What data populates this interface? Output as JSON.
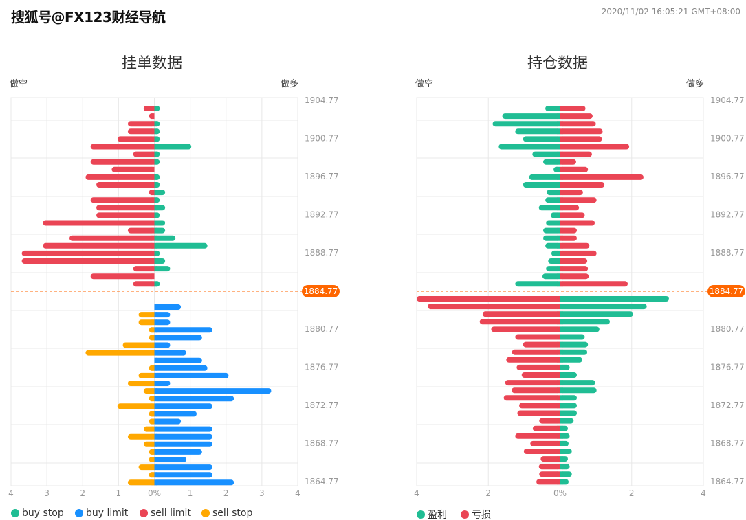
{
  "header": {
    "watermark": "搜狐号@FX123财经导航",
    "timestamp": "2020/11/02 16:05:21 GMT+08:00"
  },
  "colors": {
    "green": "#20bd94",
    "red": "#ea4555",
    "blue": "#1890ff",
    "orange": "#ffa800",
    "price_line": "#ff6600",
    "grid": "#e8e8e8"
  },
  "chart_data": [
    {
      "type": "bar",
      "orientation": "horizontal-diverging",
      "title": "挂单数据",
      "left_label": "做空",
      "right_label": "做多",
      "x_ticks": [
        "4",
        "3",
        "2",
        "1",
        "0%",
        "1",
        "2",
        "3",
        "4"
      ],
      "xlim": [
        -4,
        4
      ],
      "grid": true,
      "price_ticks": [
        "1904.77",
        "1900.77",
        "1896.77",
        "1892.77",
        "1888.77",
        "1884.77",
        "1880.77",
        "1876.77",
        "1872.77",
        "1868.77",
        "1864.77"
      ],
      "current_price": "1884.77",
      "legend": [
        {
          "name": "buy stop",
          "color": "#20bd94"
        },
        {
          "name": "buy limit",
          "color": "#1890ff"
        },
        {
          "name": "sell limit",
          "color": "#ea4555"
        },
        {
          "name": "sell stop",
          "color": "#ffa800"
        }
      ],
      "above_price": {
        "sell limit": [
          0.3,
          0.15,
          0.74,
          0.74,
          1.03,
          1.78,
          0.59,
          1.78,
          1.19,
          1.92,
          1.62,
          0.15,
          1.78,
          1.62,
          1.62,
          3.11,
          0.74,
          2.37,
          3.11,
          3.7,
          3.7,
          0.59,
          1.78,
          0.59
        ],
        "buy stop": [
          0.15,
          0,
          0.15,
          0.15,
          0.15,
          1.03,
          0.15,
          0.15,
          0,
          0.15,
          0.15,
          0.3,
          0.15,
          0.3,
          0.15,
          0.3,
          0.3,
          0.59,
          1.48,
          0.15,
          0.3,
          0.44,
          0,
          0.15
        ]
      },
      "below_price": {
        "sell stop": [
          0,
          0.44,
          0.44,
          0.15,
          0.15,
          0.88,
          1.92,
          0,
          0.15,
          0.44,
          0.74,
          0.3,
          0.15,
          1.03,
          0.15,
          0.15,
          0.3,
          0.74,
          0.3,
          0.15,
          0.15,
          0.44,
          0.15,
          0.74
        ],
        "buy limit": [
          0.74,
          0.44,
          0.44,
          1.62,
          1.33,
          0.44,
          0.89,
          1.33,
          1.48,
          2.07,
          0.44,
          3.26,
          2.22,
          1.62,
          1.18,
          0.74,
          1.62,
          1.62,
          1.62,
          1.33,
          0.89,
          1.62,
          1.62,
          2.22
        ]
      }
    },
    {
      "type": "bar",
      "orientation": "horizontal-diverging",
      "title": "持仓数据",
      "left_label": "做空",
      "right_label": "做多",
      "x_ticks": [
        "4",
        "2",
        "0%",
        "2",
        "4"
      ],
      "xlim": [
        -4,
        4
      ],
      "grid": true,
      "price_ticks": [
        "1904.77",
        "1900.77",
        "1896.77",
        "1892.77",
        "1888.77",
        "1884.77",
        "1880.77",
        "1876.77",
        "1872.77",
        "1868.77",
        "1864.77"
      ],
      "current_price": "1884.77",
      "legend": [
        {
          "name": "盈利",
          "color": "#20bd94"
        },
        {
          "name": "亏损",
          "color": "#ea4555"
        }
      ],
      "above_price": {
        "left_green": [
          0.41,
          1.61,
          1.88,
          1.25,
          1.03,
          1.71,
          0.77,
          0.47,
          0.18,
          0.86,
          1.03,
          0.37,
          0.41,
          0.59,
          0.26,
          0.39,
          0.47,
          0.47,
          0.41,
          0.24,
          0.33,
          0.39,
          0.49,
          1.25
        ],
        "right_red": [
          0.71,
          0.91,
          1.0,
          1.19,
          1.17,
          1.93,
          0.89,
          0.45,
          0.78,
          2.33,
          1.24,
          0.64,
          1.02,
          0.53,
          0.69,
          0.97,
          0.47,
          0.47,
          0.82,
          1.02,
          0.76,
          0.78,
          0.8,
          1.89
        ]
      },
      "below_price": {
        "left_red": [
          4.0,
          3.69,
          2.16,
          2.24,
          1.92,
          1.25,
          1.03,
          1.34,
          1.5,
          1.21,
          1.07,
          1.53,
          1.35,
          1.57,
          1.14,
          1.19,
          0.58,
          0.76,
          1.25,
          0.83,
          1.01,
          0.54,
          0.59,
          0.58,
          0.66
        ],
        "right_green": [
          3.04,
          2.42,
          2.04,
          1.39,
          1.1,
          0.69,
          0.78,
          0.76,
          0.62,
          0.27,
          0.47,
          0.98,
          1.02,
          0.47,
          0.47,
          0.47,
          0.38,
          0.22,
          0.27,
          0.24,
          0.33,
          0.22,
          0.27,
          0.33,
          0.24
        ]
      }
    }
  ]
}
